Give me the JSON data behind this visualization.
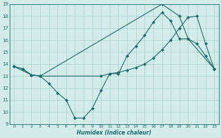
{
  "xlabel": "Humidex (Indice chaleur)",
  "background_color": "#d4ece9",
  "grid_color": "#b0d4d0",
  "line_color": "#1a6b6b",
  "xlim": [
    -0.5,
    23.5
  ],
  "ylim": [
    9,
    19
  ],
  "xticks": [
    0,
    1,
    2,
    3,
    4,
    5,
    6,
    7,
    8,
    9,
    10,
    11,
    12,
    13,
    14,
    15,
    16,
    17,
    18,
    19,
    20,
    21,
    22,
    23
  ],
  "yticks": [
    9,
    10,
    11,
    12,
    13,
    14,
    15,
    16,
    17,
    18,
    19
  ],
  "line1_x": [
    0,
    1,
    2,
    3,
    4,
    5,
    6,
    7,
    8,
    9,
    10,
    11,
    12,
    13,
    14,
    15,
    16,
    17,
    18,
    19,
    20,
    21,
    22,
    23
  ],
  "line1_y": [
    13.8,
    13.6,
    13.1,
    13.0,
    12.4,
    11.6,
    11.0,
    9.5,
    9.5,
    10.3,
    11.8,
    13.2,
    13.2,
    14.7,
    15.5,
    16.4,
    17.5,
    18.3,
    17.6,
    16.1,
    16.1,
    15.7,
    14.7,
    13.6
  ],
  "line2_x": [
    0,
    1,
    2,
    3,
    10,
    11,
    12,
    13,
    14,
    15,
    16,
    17,
    18,
    19,
    20,
    21,
    22,
    23
  ],
  "line2_y": [
    13.8,
    13.6,
    13.1,
    13.0,
    13.0,
    13.2,
    13.3,
    13.5,
    13.7,
    14.0,
    14.5,
    15.2,
    16.0,
    17.0,
    17.9,
    18.0,
    15.7,
    13.6
  ],
  "line3_x": [
    0,
    2,
    3,
    17,
    19,
    20,
    23
  ],
  "line3_y": [
    13.8,
    13.1,
    13.0,
    19.0,
    18.0,
    16.1,
    13.6
  ]
}
